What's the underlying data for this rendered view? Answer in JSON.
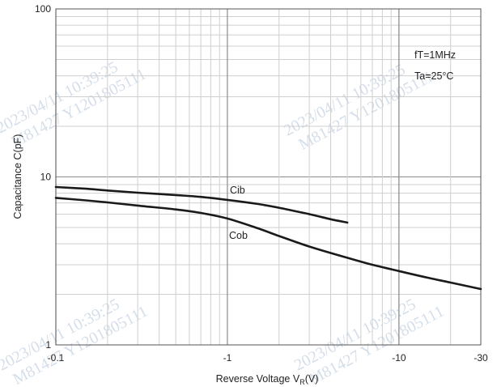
{
  "chart_data": {
    "type": "line",
    "xscale": "log",
    "yscale": "log",
    "xlim": [
      0.1,
      30
    ],
    "ylim": [
      1,
      100
    ],
    "x_reversed_sign": true,
    "xlabel_main": "Reverse Voltage  V",
    "xlabel_sub": "R",
    "xlabel_unit": "(V)",
    "ylabel": "Capacitance  C(pF)",
    "x_ticks": [
      {
        "value": 0.1,
        "label": "-0.1"
      },
      {
        "value": 1,
        "label": "-1"
      },
      {
        "value": 10,
        "label": "-10"
      },
      {
        "value": 30,
        "label": "-30"
      }
    ],
    "y_ticks": [
      {
        "value": 1,
        "label": "1"
      },
      {
        "value": 10,
        "label": "10"
      },
      {
        "value": 100,
        "label": "100"
      }
    ],
    "grid": true,
    "conditions": [
      "fT=1MHz",
      "Ta=25°C"
    ],
    "series": [
      {
        "name": "Cib",
        "color": "#1a1a1a",
        "x": [
          0.1,
          0.15,
          0.2,
          0.3,
          0.5,
          0.7,
          1.0,
          1.5,
          2.0,
          3.0,
          4.0,
          5.0
        ],
        "y": [
          8.7,
          8.5,
          8.3,
          8.05,
          7.8,
          7.6,
          7.3,
          6.9,
          6.55,
          6.0,
          5.6,
          5.35
        ]
      },
      {
        "name": "Cob",
        "color": "#1a1a1a",
        "x": [
          0.1,
          0.15,
          0.2,
          0.3,
          0.5,
          0.7,
          1.0,
          1.5,
          2.0,
          3.0,
          5.0,
          7.0,
          10.0,
          15.0,
          20.0,
          30.0
        ],
        "y": [
          7.5,
          7.25,
          7.05,
          6.75,
          6.4,
          6.1,
          5.65,
          4.95,
          4.45,
          3.85,
          3.3,
          3.0,
          2.75,
          2.5,
          2.35,
          2.15
        ]
      }
    ]
  },
  "watermarks": [
    {
      "line1": "2023/04/11  10:39:25",
      "line2": "M81427  Y1201805111"
    },
    {
      "line1": "2023/04/11  10:39:25",
      "line2": "M81427  Y1201805111"
    },
    {
      "line1": "2023/04/11  10:39:25",
      "line2": "M81427  Y1201805111"
    },
    {
      "line1": "2023/04/11  10:39:25",
      "line2": "M81427  Y1201805111"
    }
  ]
}
